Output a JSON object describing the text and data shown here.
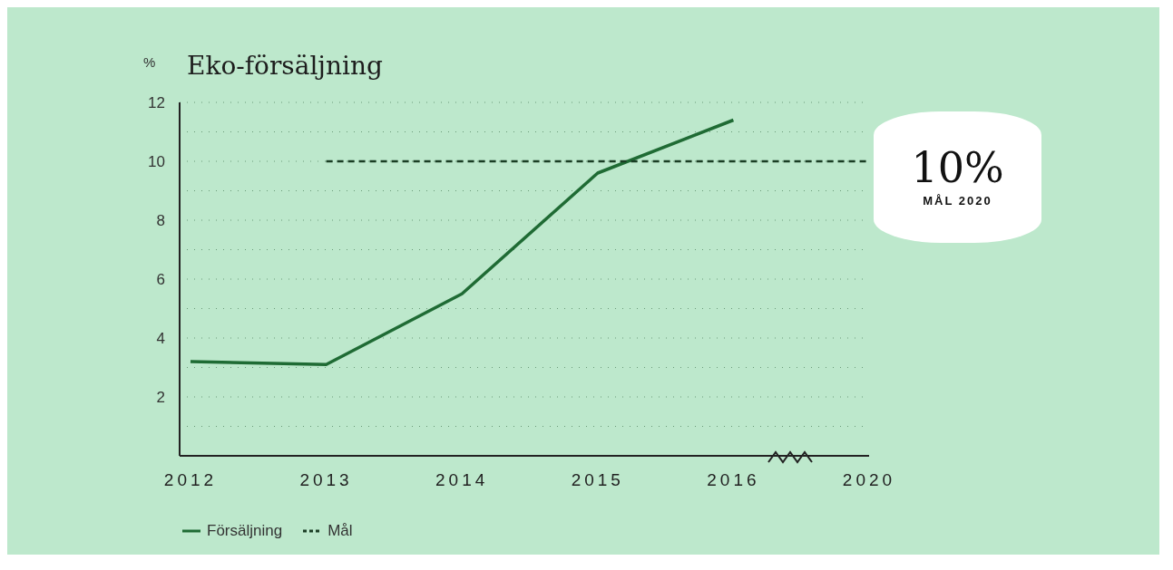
{
  "chart_data": {
    "type": "line",
    "title": "Eko-försäljning",
    "ylabel": "%",
    "categories": [
      "2012",
      "2013",
      "2014",
      "2015",
      "2016",
      "2020"
    ],
    "series": [
      {
        "name": "Försäljning",
        "color": "#1f6b34",
        "values": [
          3.2,
          3.1,
          5.5,
          9.6,
          11.4,
          null
        ],
        "line_style": "solid"
      },
      {
        "name": "Mål",
        "color": "#1a3d24",
        "values": [
          null,
          10,
          10,
          10,
          10,
          10
        ],
        "line_style": "dashed"
      }
    ],
    "ylim": [
      0,
      12
    ],
    "yticks": [
      {
        "value": 1,
        "label": null
      },
      2,
      {
        "value": 3,
        "label": null
      },
      4,
      {
        "value": 5,
        "label": null
      },
      6,
      {
        "value": 7,
        "label": null
      },
      8,
      {
        "value": 9,
        "label": null
      },
      10,
      {
        "value": 11,
        "label": null
      },
      12
    ],
    "grid": "y",
    "legend": "bottom",
    "marker": "none",
    "annotations": [
      "10%",
      "MÅL 2020"
    ]
  }
}
